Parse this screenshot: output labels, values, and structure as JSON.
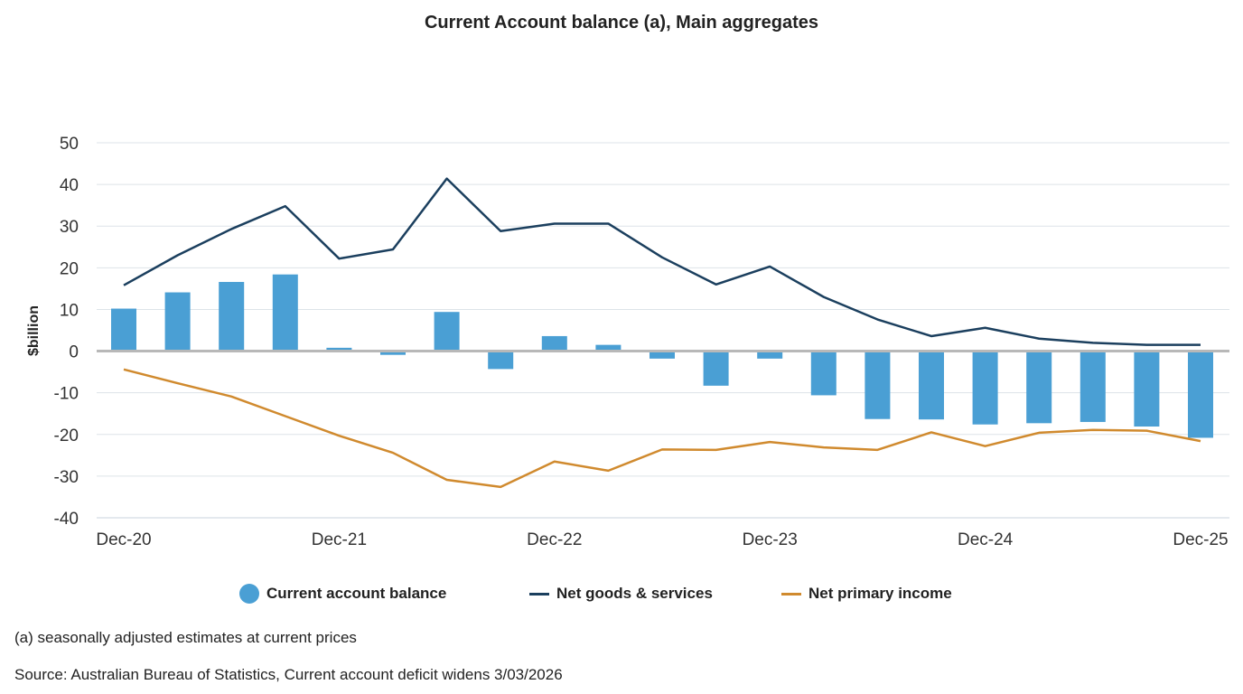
{
  "chart_data": {
    "type": "bar+line",
    "title": "Current Account balance (a), Main aggregates",
    "ylabel": "$billion",
    "xlabel": "",
    "ylim": [
      -40,
      50
    ],
    "yticks": [
      50,
      40,
      30,
      20,
      10,
      0,
      -10,
      -20,
      -30,
      -40
    ],
    "grid": true,
    "x_tick_labels": [
      {
        "index": 0,
        "label": "Dec-20"
      },
      {
        "index": 4,
        "label": "Dec-21"
      },
      {
        "index": 8,
        "label": "Dec-22"
      },
      {
        "index": 12,
        "label": "Dec-23"
      },
      {
        "index": 16,
        "label": "Dec-24"
      },
      {
        "index": 20,
        "label": "Dec-25"
      }
    ],
    "periods": 21,
    "series": [
      {
        "name": "Current account balance",
        "kind": "bar",
        "color": "#4A9FD4",
        "values": [
          10.2,
          14.1,
          16.6,
          18.4,
          0.8,
          -0.9,
          9.4,
          -4.3,
          3.6,
          1.5,
          -1.8,
          -8.3,
          -1.8,
          -10.6,
          -16.3,
          -16.4,
          -17.6,
          -17.3,
          -17.0,
          -18.1,
          -20.8
        ]
      },
      {
        "name": "Net goods & services",
        "kind": "line",
        "color": "#1B3F5E",
        "values": [
          15.8,
          23.0,
          29.3,
          34.8,
          22.2,
          24.4,
          41.4,
          28.8,
          30.6,
          30.6,
          22.5,
          16.0,
          20.3,
          13.0,
          7.6,
          3.6,
          5.6,
          3.0,
          2.0,
          1.5,
          1.5
        ]
      },
      {
        "name": "Net primary income",
        "kind": "line",
        "color": "#D08A2E",
        "values": [
          -4.4,
          -7.7,
          -10.9,
          -15.6,
          -20.3,
          -24.4,
          -30.9,
          -32.6,
          -26.5,
          -28.7,
          -23.6,
          -23.7,
          -21.8,
          -23.1,
          -23.7,
          -19.5,
          -22.8,
          -19.6,
          -18.9,
          -19.1,
          -21.6
        ]
      }
    ],
    "legend_position": "bottom-center"
  },
  "footnote": "(a) seasonally adjusted estimates at current prices",
  "source": "Source: Australian Bureau of Statistics, Current account deficit widens 3/03/2026"
}
